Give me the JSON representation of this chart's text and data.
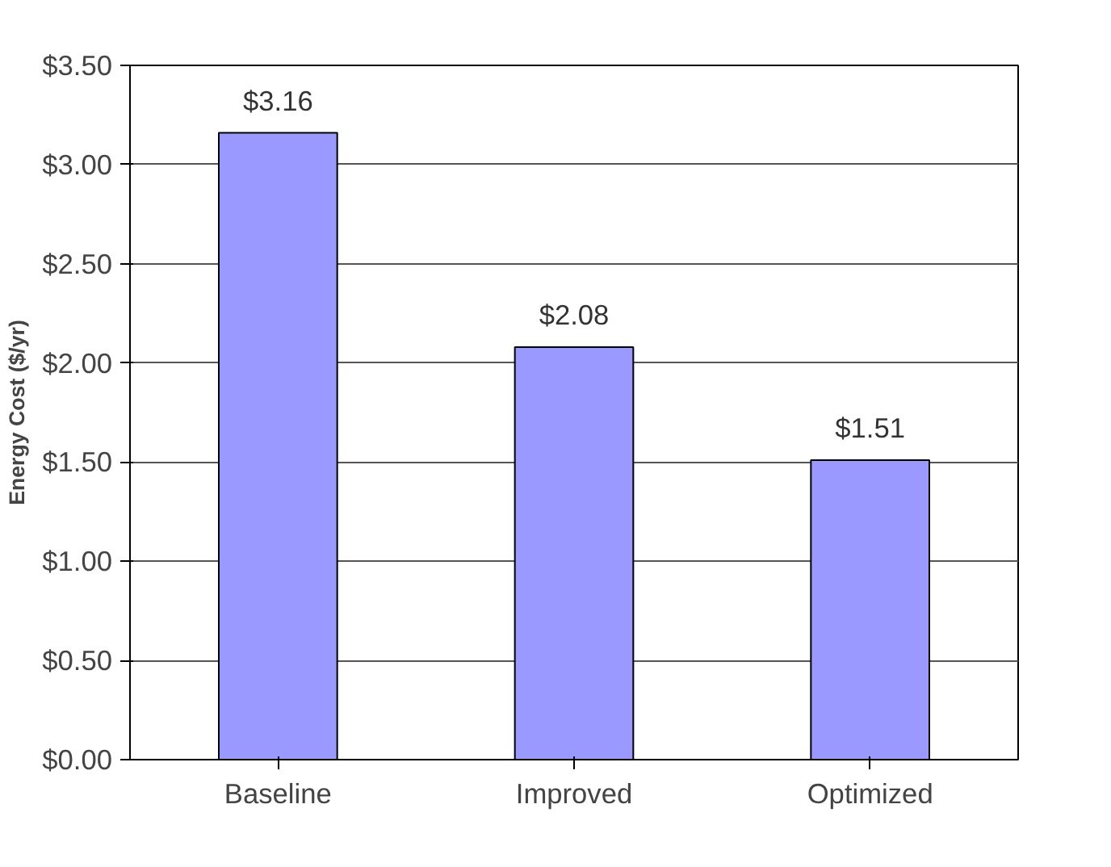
{
  "chart_data": {
    "type": "bar",
    "ylabel": "Energy Cost ($/yr)",
    "categories": [
      "Baseline",
      "Improved",
      "Optimized"
    ],
    "values": [
      3.16,
      2.08,
      1.51
    ],
    "color": "#9999ff",
    "value_labels": [
      "$3.16",
      "$2.08",
      "$1.51"
    ],
    "ylim": [
      0,
      3.5
    ],
    "yticks": [
      {
        "value": 0,
        "label": "$0.00"
      },
      {
        "value": 0.5,
        "label": "$0.50"
      },
      {
        "value": 1,
        "label": "$1.00"
      },
      {
        "value": 1.5,
        "label": "$1.50"
      },
      {
        "value": 2,
        "label": "$2.00"
      },
      {
        "value": 2.5,
        "label": "$2.50"
      },
      {
        "value": 3,
        "label": "$3.00"
      },
      {
        "value": 3.5,
        "label": "$3.50"
      }
    ],
    "grid": "y"
  }
}
